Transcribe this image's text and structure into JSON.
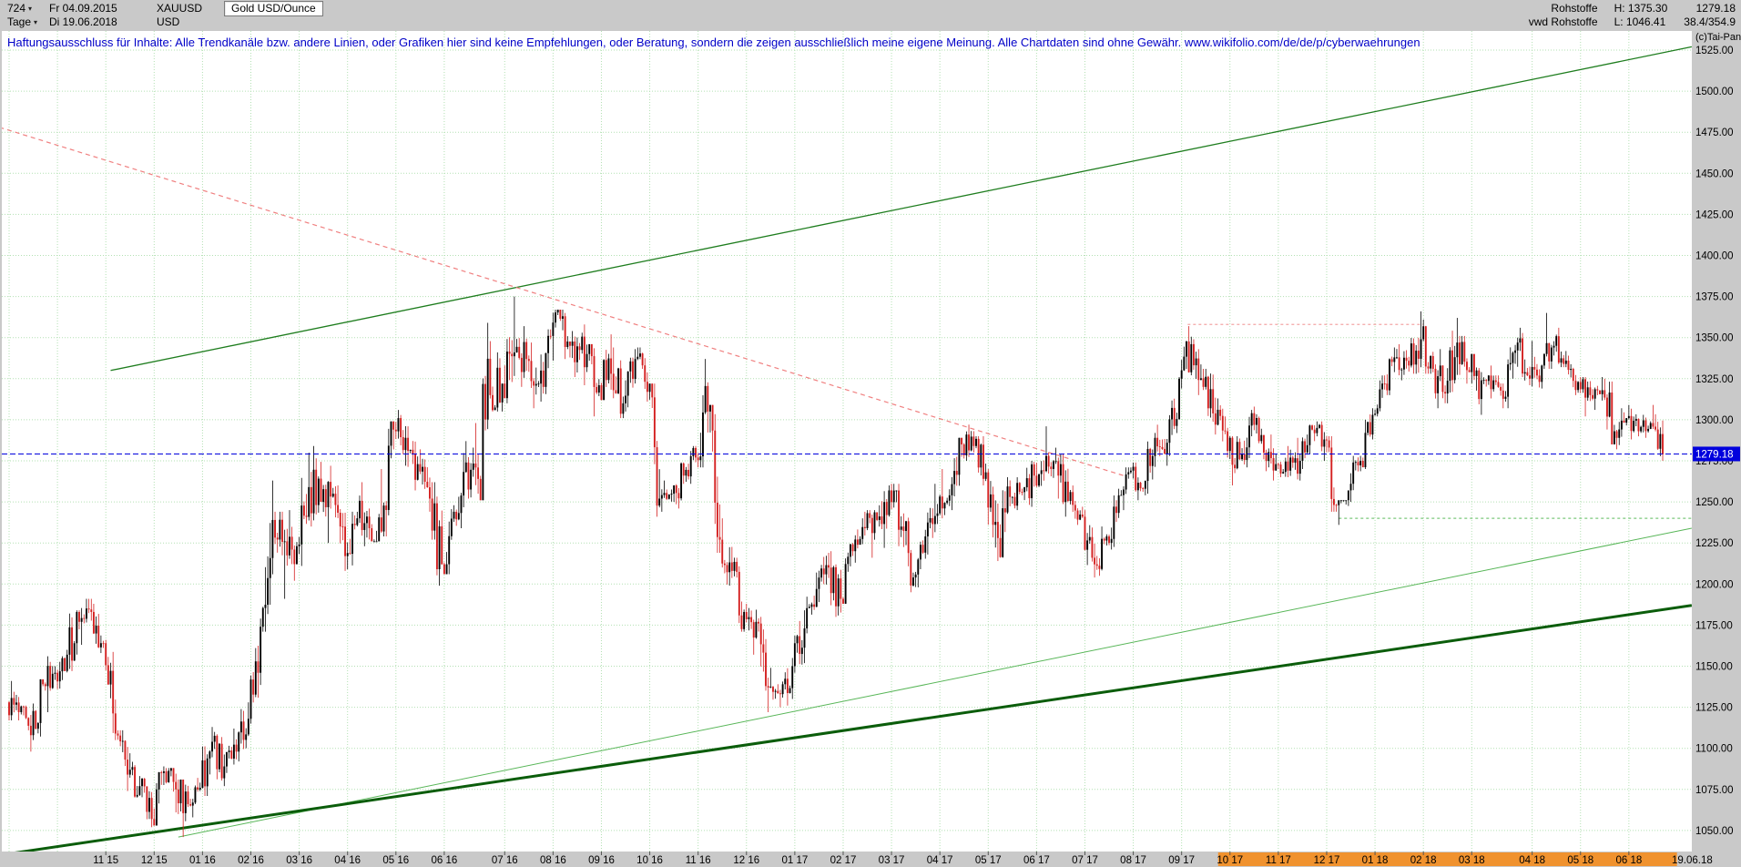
{
  "header": {
    "bars": "724",
    "start_date": "Fr 04.09.2015",
    "symbol": "XAUUSD",
    "instrument": "Gold USD/Ounce",
    "timeframe": "Tage",
    "end_date": "Di 19.06.2018",
    "currency": "USD"
  },
  "quote_panel": {
    "source": "Rohstoffe",
    "feed": "vwd Rohstoffe",
    "high": "H: 1375.30",
    "low": "L: 1046.41",
    "last": "1279.18",
    "extra": "38.4/354.9"
  },
  "copyright": "(c)Tai-Pan",
  "disclaimer": "Haftungsausschluss für Inhalte: Alle Trendkanäle bzw. andere Linien, oder Grafiken hier sind keine Empfehlungen, oder Beratung, sondern die zeigen ausschließlich meine eigene Meinung. Alle Chartdaten sind ohne Gewähr.  www.wikifolio.com/de/de/p/cyberwaehrungen",
  "colors": {
    "up": "#000000",
    "down": "#d42020",
    "grid": "#b2e0b2",
    "bg": "#ffffff",
    "frame": "#c9c9c9",
    "accent_blue": "#0000dd",
    "orange": "#f0922e"
  },
  "chart_data": {
    "type": "candlestick",
    "title": "Gold USD/Ounce",
    "symbol": "XAUUSD",
    "timeframe": "Tage",
    "period_start": "04.09.2015",
    "period_end": "19.06.2018",
    "currency": "USD",
    "period_high": 1375.3,
    "period_low": 1046.41,
    "current_price": 1279.18,
    "end_label": "19.06.18",
    "ylim": [
      1037,
      1537
    ],
    "grid": "dotted-green",
    "price_ticks": [
      1525,
      1500,
      1475,
      1450,
      1425,
      1400,
      1375,
      1350,
      1325,
      1300,
      1275,
      1250,
      1225,
      1200,
      1175,
      1150,
      1125,
      1100,
      1075,
      1050
    ],
    "month_ticks": [
      {
        "label": "11 15",
        "week": 8
      },
      {
        "label": "12 15",
        "week": 12
      },
      {
        "label": "01 16",
        "week": 16
      },
      {
        "label": "02 16",
        "week": 20
      },
      {
        "label": "03 16",
        "week": 24
      },
      {
        "label": "04 16",
        "week": 28
      },
      {
        "label": "05 16",
        "week": 32
      },
      {
        "label": "06 16",
        "week": 36
      },
      {
        "label": "07 16",
        "week": 41
      },
      {
        "label": "08 16",
        "week": 45
      },
      {
        "label": "09 16",
        "week": 49
      },
      {
        "label": "10 16",
        "week": 53
      },
      {
        "label": "11 16",
        "week": 57
      },
      {
        "label": "12 16",
        "week": 61
      },
      {
        "label": "01 17",
        "week": 65
      },
      {
        "label": "02 17",
        "week": 69
      },
      {
        "label": "03 17",
        "week": 73
      },
      {
        "label": "04 17",
        "week": 77
      },
      {
        "label": "05 17",
        "week": 81
      },
      {
        "label": "06 17",
        "week": 85
      },
      {
        "label": "07 17",
        "week": 89
      },
      {
        "label": "08 17",
        "week": 93
      },
      {
        "label": "09 17",
        "week": 97
      },
      {
        "label": "10 17",
        "week": 101,
        "highlight": true
      },
      {
        "label": "11 17",
        "week": 105,
        "highlight": true
      },
      {
        "label": "12 17",
        "week": 109,
        "highlight": true
      },
      {
        "label": "01 18",
        "week": 113,
        "highlight": true
      },
      {
        "label": "02 18",
        "week": 117,
        "highlight": true
      },
      {
        "label": "03 18",
        "week": 121,
        "highlight": true
      },
      {
        "label": "04 18",
        "week": 126,
        "highlight": true
      },
      {
        "label": "05 18",
        "week": 130,
        "highlight": true
      },
      {
        "label": "06 18",
        "week": 134,
        "highlight": true
      }
    ],
    "lines": [
      {
        "name": "upper-channel-line",
        "color": "#1e7d1e",
        "width": 1.3,
        "dash": null,
        "w1": 8.4,
        "p1": 1330,
        "w2": 139.2,
        "p2": 1527
      },
      {
        "name": "long-term-support-line",
        "color": "#58b658",
        "width": 1,
        "dash": null,
        "w1": 14,
        "p1": 1046,
        "w2": 139.2,
        "p2": 1234
      },
      {
        "name": "major-support-line",
        "color": "#0b5d0b",
        "width": 3,
        "dash": null,
        "w1": -0.8,
        "p1": 1035,
        "w2": 139.2,
        "p2": 1187
      },
      {
        "name": "downtrend-line",
        "color": "#f08080",
        "width": 1.2,
        "dash": "5,4",
        "w1": -0.8,
        "p1": 1478,
        "w2": 92.2,
        "p2": 1266
      },
      {
        "name": "resistance-level-line",
        "color": "#f4a6a6",
        "width": 1.2,
        "dash": "3,3",
        "w1": 97.5,
        "p1": 1358,
        "w2": 117,
        "p2": 1358
      },
      {
        "name": "support-level-line",
        "color": "#7cc87c",
        "width": 1.2,
        "dash": "3,3",
        "w1": 110,
        "p1": 1240,
        "w2": 139.2,
        "p2": 1240
      }
    ],
    "weekly_ohlc": [
      [
        1128,
        1141,
        1117,
        1122
      ],
      [
        1122,
        1126,
        1098,
        1108
      ],
      [
        1108,
        1142,
        1105,
        1139
      ],
      [
        1139,
        1156,
        1122,
        1146
      ],
      [
        1146,
        1160,
        1136,
        1157
      ],
      [
        1157,
        1184,
        1147,
        1177
      ],
      [
        1177,
        1191,
        1163,
        1183
      ],
      [
        1183,
        1188,
        1158,
        1164
      ],
      [
        1164,
        1166,
        1105,
        1109
      ],
      [
        1109,
        1111,
        1074,
        1084
      ],
      [
        1084,
        1097,
        1070,
        1077
      ],
      [
        1077,
        1082,
        1052,
        1057
      ],
      [
        1057,
        1089,
        1053,
        1086
      ],
      [
        1086,
        1088,
        1061,
        1075
      ],
      [
        1075,
        1081,
        1046,
        1066
      ],
      [
        1066,
        1082,
        1058,
        1076
      ],
      [
        1076,
        1113,
        1071,
        1104
      ],
      [
        1104,
        1110,
        1077,
        1089
      ],
      [
        1089,
        1112,
        1085,
        1098
      ],
      [
        1098,
        1128,
        1092,
        1118
      ],
      [
        1118,
        1179,
        1115,
        1174
      ],
      [
        1174,
        1263,
        1171,
        1239
      ],
      [
        1239,
        1244,
        1191,
        1226
      ],
      [
        1226,
        1245,
        1202,
        1223
      ],
      [
        1223,
        1280,
        1211,
        1259
      ],
      [
        1259,
        1284,
        1235,
        1250
      ],
      [
        1250,
        1272,
        1225,
        1255
      ],
      [
        1255,
        1260,
        1208,
        1217
      ],
      [
        1217,
        1244,
        1209,
        1240
      ],
      [
        1240,
        1262,
        1223,
        1234
      ],
      [
        1234,
        1270,
        1226,
        1232
      ],
      [
        1232,
        1299,
        1229,
        1294
      ],
      [
        1294,
        1306,
        1272,
        1289
      ],
      [
        1289,
        1296,
        1257,
        1273
      ],
      [
        1273,
        1282,
        1244,
        1252
      ],
      [
        1252,
        1262,
        1199,
        1212
      ],
      [
        1212,
        1248,
        1206,
        1244
      ],
      [
        1244,
        1287,
        1234,
        1274
      ],
      [
        1274,
        1298,
        1252,
        1264
      ],
      [
        1264,
        1359,
        1251,
        1315
      ],
      [
        1315,
        1341,
        1305,
        1322
      ],
      [
        1322,
        1375,
        1310,
        1341
      ],
      [
        1341,
        1357,
        1320,
        1337
      ],
      [
        1337,
        1347,
        1307,
        1322
      ],
      [
        1322,
        1355,
        1311,
        1351
      ],
      [
        1351,
        1367,
        1336,
        1363
      ],
      [
        1363,
        1365,
        1326,
        1335
      ],
      [
        1335,
        1358,
        1321,
        1340
      ],
      [
        1340,
        1346,
        1302,
        1321
      ],
      [
        1321,
        1352,
        1312,
        1328
      ],
      [
        1328,
        1344,
        1301,
        1310
      ],
      [
        1310,
        1343,
        1305,
        1337
      ],
      [
        1337,
        1344,
        1311,
        1317
      ],
      [
        1317,
        1322,
        1241,
        1252
      ],
      [
        1252,
        1263,
        1244,
        1255
      ],
      [
        1255,
        1274,
        1246,
        1266
      ],
      [
        1266,
        1284,
        1261,
        1277
      ],
      [
        1277,
        1337,
        1271,
        1305
      ],
      [
        1305,
        1309,
        1219,
        1227
      ],
      [
        1227,
        1240,
        1199,
        1208
      ],
      [
        1208,
        1216,
        1171,
        1183
      ],
      [
        1183,
        1188,
        1157,
        1177
      ],
      [
        1177,
        1180,
        1122,
        1137
      ],
      [
        1137,
        1149,
        1125,
        1133
      ],
      [
        1133,
        1155,
        1126,
        1150
      ],
      [
        1150,
        1184,
        1146,
        1173
      ],
      [
        1173,
        1207,
        1170,
        1197
      ],
      [
        1197,
        1219,
        1189,
        1210
      ],
      [
        1210,
        1220,
        1180,
        1191
      ],
      [
        1191,
        1225,
        1188,
        1220
      ],
      [
        1220,
        1244,
        1213,
        1234
      ],
      [
        1234,
        1245,
        1216,
        1239
      ],
      [
        1239,
        1260,
        1222,
        1257
      ],
      [
        1257,
        1261,
        1223,
        1235
      ],
      [
        1235,
        1243,
        1195,
        1204
      ],
      [
        1204,
        1233,
        1198,
        1229
      ],
      [
        1229,
        1261,
        1218,
        1243
      ],
      [
        1243,
        1270,
        1240,
        1254
      ],
      [
        1254,
        1289,
        1245,
        1285
      ],
      [
        1285,
        1297,
        1275,
        1284
      ],
      [
        1284,
        1290,
        1260,
        1268
      ],
      [
        1268,
        1270,
        1214,
        1228
      ],
      [
        1228,
        1265,
        1216,
        1253
      ],
      [
        1253,
        1265,
        1245,
        1256
      ],
      [
        1256,
        1275,
        1247,
        1266
      ],
      [
        1266,
        1296,
        1259,
        1278
      ],
      [
        1278,
        1283,
        1252,
        1266
      ],
      [
        1266,
        1279,
        1241,
        1256
      ],
      [
        1256,
        1260,
        1236,
        1241
      ],
      [
        1241,
        1245,
        1204,
        1212
      ],
      [
        1212,
        1235,
        1205,
        1229
      ],
      [
        1229,
        1258,
        1221,
        1254
      ],
      [
        1254,
        1271,
        1245,
        1269
      ],
      [
        1269,
        1274,
        1251,
        1258
      ],
      [
        1258,
        1292,
        1254,
        1289
      ],
      [
        1289,
        1297,
        1272,
        1286
      ],
      [
        1286,
        1326,
        1278,
        1325
      ],
      [
        1325,
        1357,
        1319,
        1346
      ],
      [
        1346,
        1349,
        1315,
        1320
      ],
      [
        1320,
        1331,
        1291,
        1297
      ],
      [
        1297,
        1313,
        1277,
        1281
      ],
      [
        1281,
        1290,
        1260,
        1276
      ],
      [
        1276,
        1306,
        1271,
        1304
      ],
      [
        1304,
        1308,
        1276,
        1280
      ],
      [
        1280,
        1291,
        1263,
        1273
      ],
      [
        1273,
        1284,
        1265,
        1269
      ],
      [
        1269,
        1289,
        1263,
        1275
      ],
      [
        1275,
        1297,
        1270,
        1294
      ],
      [
        1294,
        1299,
        1275,
        1288
      ],
      [
        1288,
        1290,
        1244,
        1248
      ],
      [
        1248,
        1251,
        1236,
        1257
      ],
      [
        1257,
        1278,
        1250,
        1275
      ],
      [
        1275,
        1307,
        1270,
        1303
      ],
      [
        1303,
        1327,
        1302,
        1322
      ],
      [
        1322,
        1344,
        1315,
        1338
      ],
      [
        1338,
        1346,
        1324,
        1333
      ],
      [
        1333,
        1366,
        1328,
        1349
      ],
      [
        1349,
        1361,
        1328,
        1331
      ],
      [
        1331,
        1343,
        1307,
        1316
      ],
      [
        1316,
        1362,
        1310,
        1347
      ],
      [
        1347,
        1351,
        1322,
        1329
      ],
      [
        1329,
        1340,
        1303,
        1324
      ],
      [
        1324,
        1333,
        1313,
        1324
      ],
      [
        1324,
        1327,
        1307,
        1314
      ],
      [
        1314,
        1350,
        1307,
        1347
      ],
      [
        1347,
        1356,
        1321,
        1325
      ],
      [
        1325,
        1348,
        1319,
        1333
      ],
      [
        1333,
        1365,
        1331,
        1345
      ],
      [
        1345,
        1356,
        1332,
        1336
      ],
      [
        1336,
        1339,
        1315,
        1323
      ],
      [
        1323,
        1326,
        1302,
        1315
      ],
      [
        1315,
        1326,
        1306,
        1318
      ],
      [
        1318,
        1325,
        1285,
        1293
      ],
      [
        1293,
        1307,
        1282,
        1301
      ],
      [
        1301,
        1309,
        1288,
        1293
      ],
      [
        1293,
        1303,
        1289,
        1298
      ],
      [
        1298,
        1309,
        1275,
        1279
      ]
    ]
  }
}
